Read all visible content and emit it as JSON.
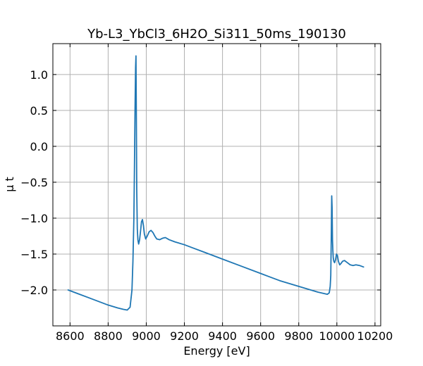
{
  "chart_data": {
    "type": "line",
    "title": "Yb-L3_YbCl3_6H2O_Si311_50ms_190130",
    "xlabel": "Energy [eV]",
    "ylabel": "μ t",
    "xlim": [
      8510,
      10230
    ],
    "ylim": [
      -2.5,
      1.43
    ],
    "xticks": [
      8600,
      8800,
      9000,
      9200,
      9400,
      9600,
      9800,
      10000,
      10200
    ],
    "yticks": [
      1.0,
      0.5,
      0.0,
      -0.5,
      -1.0,
      -1.5,
      -2.0
    ],
    "xtick_labels": [
      "8600",
      "8800",
      "9000",
      "9200",
      "9400",
      "9600",
      "9800",
      "10000",
      "10200"
    ],
    "ytick_labels": [
      "1.0",
      "0.5",
      "0.0",
      "−0.5",
      "−1.0",
      "−1.5",
      "−2.0"
    ],
    "grid": true,
    "series": [
      {
        "color": "#1f77b4",
        "x": [
          8590,
          8650,
          8700,
          8750,
          8800,
          8850,
          8880,
          8900,
          8915,
          8925,
          8930,
          8935,
          8938,
          8941,
          8944,
          8946,
          8948,
          8950,
          8953,
          8956,
          8960,
          8965,
          8970,
          8975,
          8980,
          8985,
          8990,
          8997,
          9005,
          9015,
          9025,
          9035,
          9045,
          9055,
          9070,
          9085,
          9100,
          9120,
          9150,
          9200,
          9250,
          9300,
          9400,
          9500,
          9600,
          9700,
          9800,
          9900,
          9950,
          9960,
          9965,
          9968,
          9971,
          9973,
          9975,
          9977,
          9979,
          9981,
          9984,
          9988,
          9993,
          9998,
          10003,
          10008,
          10015,
          10022,
          10030,
          10040,
          10055,
          10070,
          10085,
          10100,
          10120,
          10140
        ],
        "y": [
          -2.0,
          -2.06,
          -2.11,
          -2.16,
          -2.21,
          -2.25,
          -2.27,
          -2.28,
          -2.24,
          -2.0,
          -1.6,
          -1.0,
          -0.3,
          0.5,
          1.1,
          1.26,
          0.4,
          -0.6,
          -1.15,
          -1.3,
          -1.36,
          -1.3,
          -1.18,
          -1.05,
          -1.02,
          -1.1,
          -1.22,
          -1.29,
          -1.25,
          -1.19,
          -1.17,
          -1.2,
          -1.25,
          -1.29,
          -1.3,
          -1.28,
          -1.27,
          -1.3,
          -1.33,
          -1.37,
          -1.42,
          -1.47,
          -1.57,
          -1.67,
          -1.77,
          -1.87,
          -1.95,
          -2.03,
          -2.06,
          -2.04,
          -1.95,
          -1.8,
          -1.2,
          -0.69,
          -0.85,
          -1.3,
          -1.45,
          -1.55,
          -1.6,
          -1.62,
          -1.58,
          -1.5,
          -1.52,
          -1.6,
          -1.65,
          -1.63,
          -1.6,
          -1.59,
          -1.62,
          -1.65,
          -1.66,
          -1.65,
          -1.66,
          -1.68
        ]
      }
    ]
  }
}
